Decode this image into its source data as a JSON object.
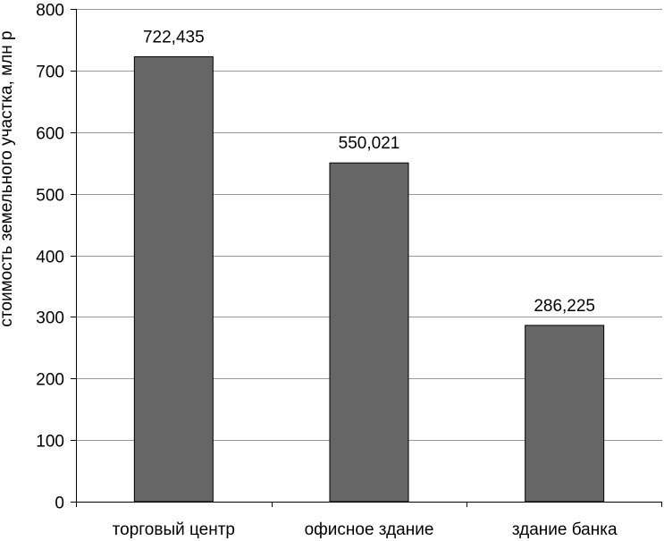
{
  "chart_data": {
    "type": "bar",
    "categories": [
      "торговый центр",
      "офисное здание",
      "здание банка"
    ],
    "values": [
      722.435,
      550.021,
      286.225
    ],
    "data_labels": [
      "722,435",
      "550,021",
      "286,225"
    ],
    "ylabel": "стоимость земельного участка, млн р",
    "xlabel": "",
    "ylim": [
      0,
      800
    ],
    "yticks": [
      0,
      100,
      200,
      300,
      400,
      500,
      600,
      700,
      800
    ],
    "grid": true,
    "legend": "none",
    "bar_color": "#666666",
    "gridline_color": "#999999"
  }
}
